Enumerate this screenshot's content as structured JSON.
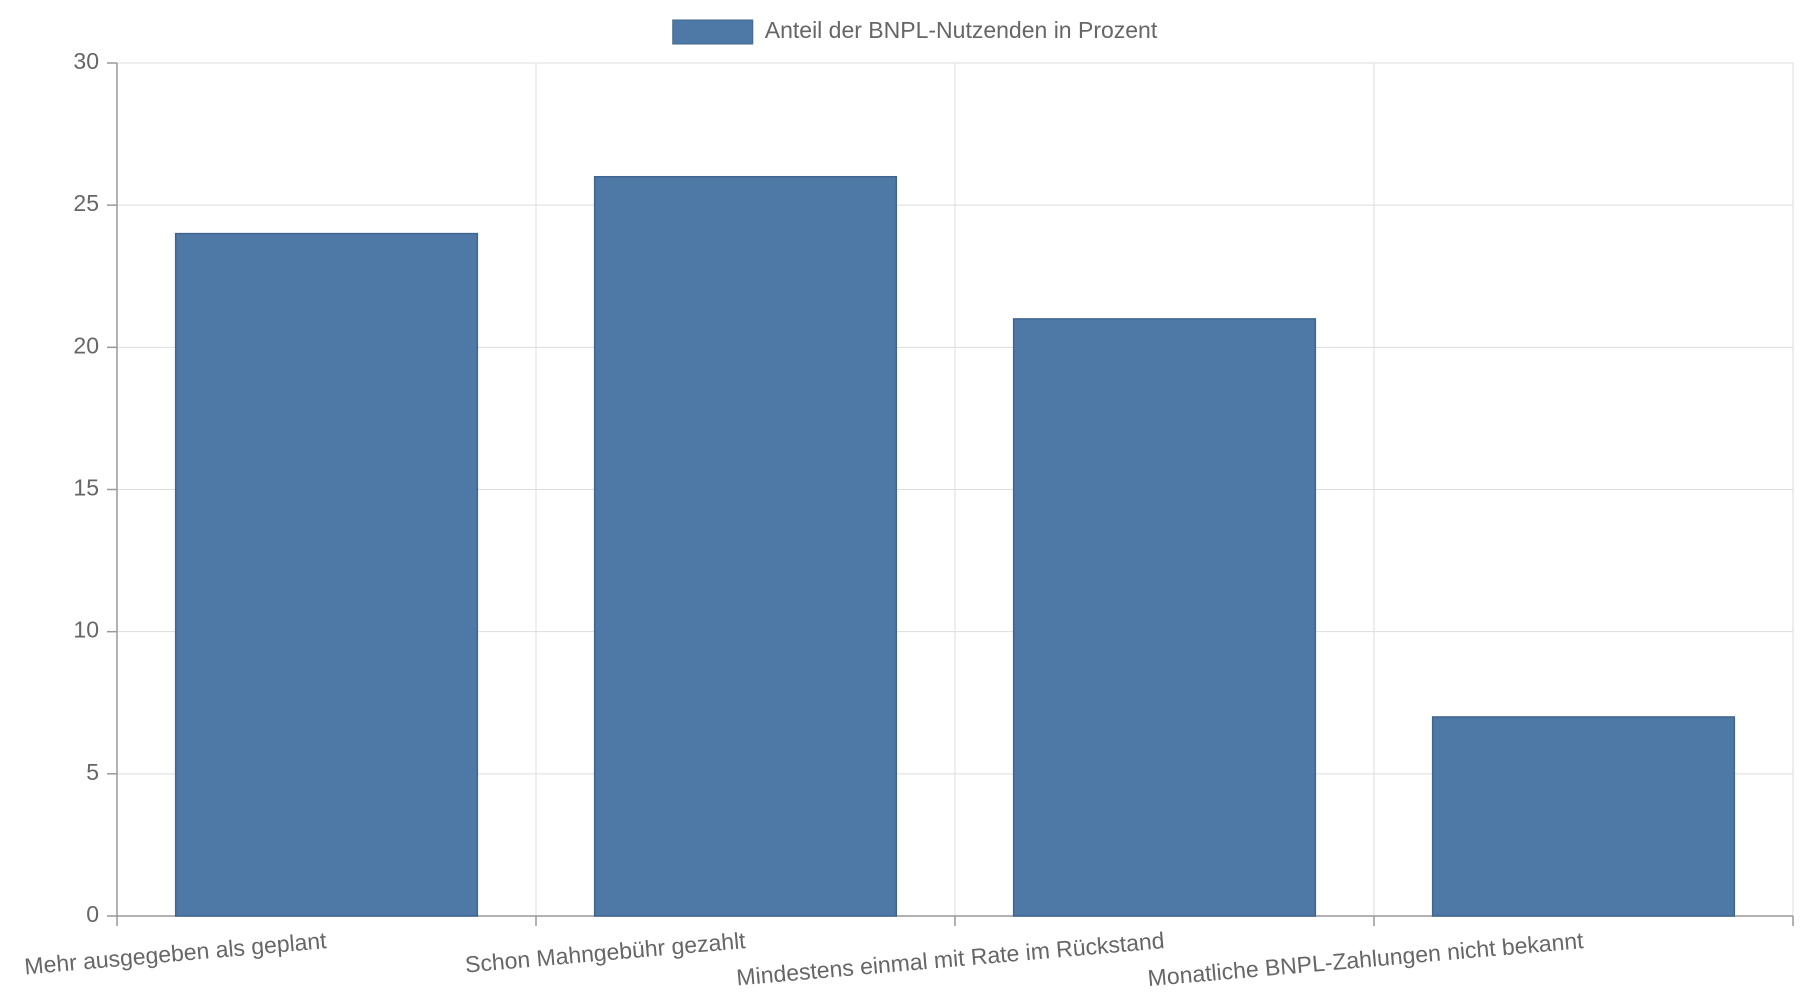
{
  "chart_data": {
    "type": "bar",
    "categories": [
      "Mehr ausgegeben als geplant",
      "Schon Mahngebühr gezahlt",
      "Mindestens einmal mit Rate im Rückstand",
      "Monatliche BNPL-Zahlungen nicht bekannt"
    ],
    "series": [
      {
        "name": "Anteil der BNPL-Nutzenden in Prozent",
        "color": "#4e79a7",
        "values": [
          24,
          26,
          21,
          7
        ]
      }
    ],
    "ylim": [
      0,
      30
    ],
    "yticks": [
      0,
      5,
      10,
      15,
      20,
      25,
      30
    ],
    "grid": true,
    "legend": "top"
  }
}
